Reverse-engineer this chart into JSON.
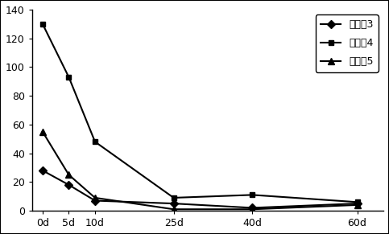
{
  "x_labels": [
    "0d",
    "5d",
    "10d",
    "25d",
    "40d",
    "60d"
  ],
  "x_values": [
    0,
    5,
    10,
    25,
    40,
    60
  ],
  "series": [
    {
      "label": "实施兡3",
      "values": [
        28,
        18,
        7,
        5,
        2,
        5
      ],
      "color": "#000000",
      "marker": "D",
      "markersize": 5,
      "linewidth": 1.5
    },
    {
      "label": "实施兡4",
      "values": [
        130,
        93,
        48,
        9,
        11,
        6
      ],
      "color": "#000000",
      "marker": "s",
      "markersize": 5,
      "linewidth": 1.5
    },
    {
      "label": "实施兡5",
      "values": [
        55,
        25,
        9,
        1,
        1,
        4
      ],
      "color": "#000000",
      "marker": "^",
      "markersize": 6,
      "linewidth": 1.5
    }
  ],
  "ylim": [
    0,
    140
  ],
  "yticks": [
    0,
    20,
    40,
    60,
    80,
    100,
    120,
    140
  ],
  "background_color": "#ffffff",
  "legend_fontsize": 9,
  "tick_fontsize": 9
}
